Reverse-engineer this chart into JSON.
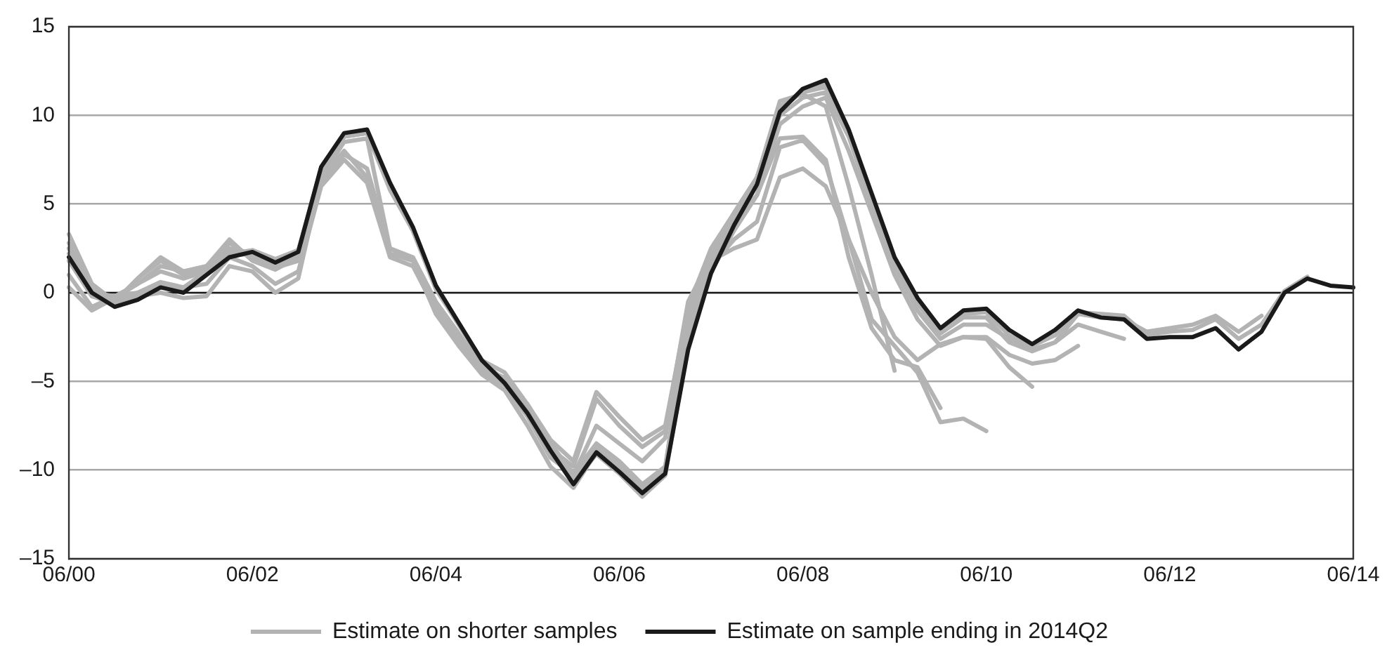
{
  "chart_data": {
    "type": "line",
    "legend": "bottom",
    "grid": "y",
    "marker": "none",
    "line_style": "solid",
    "categories": [
      "06/00",
      null,
      null,
      null,
      null,
      null,
      null,
      null,
      "06/02",
      null,
      null,
      null,
      null,
      null,
      null,
      null,
      "06/04",
      null,
      null,
      null,
      null,
      null,
      null,
      null,
      "06/06",
      null,
      null,
      null,
      null,
      null,
      null,
      null,
      "06/08",
      null,
      null,
      null,
      null,
      null,
      null,
      null,
      "06/10",
      null,
      null,
      null,
      null,
      null,
      null,
      null,
      "06/12",
      null,
      null,
      null,
      null,
      null,
      null,
      null,
      "06/14"
    ],
    "ylim": [
      -15,
      15
    ],
    "yticks": [
      {
        "value": -15,
        "label": "–15"
      },
      {
        "value": -10,
        "label": "–10"
      },
      {
        "value": -5,
        "label": "–5"
      },
      0,
      5,
      10,
      15
    ],
    "ref_lines": [
      {
        "axis": "y",
        "value": 0,
        "color": "#1a1a1a"
      }
    ],
    "series": [
      {
        "name": "Estimate on shorter samples",
        "color": "#b3b3b3",
        "values": [
          3.3,
          0.5,
          -0.5,
          0.8,
          2.0,
          1.2,
          1.5,
          3.0,
          1.8,
          1.3,
          2.0,
          6.2,
          7.8,
          7.0,
          2.5,
          2.0,
          -0.5,
          -2.3,
          -4.2,
          -4.8,
          -6.3,
          -8.3,
          -9.5,
          -5.6,
          -7.0,
          -8.3,
          -7.5,
          -0.8,
          2.5,
          4.5,
          6.5,
          10.8,
          11.2,
          10.5,
          6.0,
          1.0,
          -4.4,
          null,
          null,
          null,
          null,
          null,
          null,
          null,
          null,
          null,
          null,
          null,
          null,
          null,
          null,
          null,
          null,
          null,
          null,
          null,
          null
        ]
      },
      {
        "color": "#b3b3b3",
        "values": [
          2.8,
          0.0,
          -0.3,
          0.5,
          1.5,
          1.2,
          1.5,
          2.5,
          2.2,
          1.5,
          2.0,
          6.5,
          8.0,
          6.5,
          2.2,
          1.8,
          -0.8,
          -2.5,
          -4.3,
          -5.0,
          -6.6,
          -8.8,
          -9.8,
          -6.0,
          -7.5,
          -8.7,
          -7.8,
          -0.5,
          2.0,
          4.0,
          5.5,
          8.7,
          8.8,
          7.5,
          2.0,
          -2.0,
          -3.8,
          -4.2,
          -6.5,
          null,
          null,
          null,
          null,
          null,
          null,
          null,
          null,
          null,
          null,
          null,
          null,
          null,
          null,
          null,
          null,
          null,
          null
        ]
      },
      {
        "color": "#b3b3b3",
        "values": [
          1.0,
          -0.8,
          -0.2,
          0.0,
          0.5,
          0.3,
          0.5,
          2.0,
          1.5,
          0.5,
          1.2,
          6.0,
          7.5,
          6.2,
          2.0,
          1.5,
          -1.0,
          -2.8,
          -4.5,
          -5.2,
          -7.0,
          -9.3,
          -10.3,
          -7.5,
          -8.5,
          -9.5,
          -8.2,
          -0.8,
          1.5,
          3.0,
          4.0,
          8.2,
          8.6,
          7.2,
          3.0,
          -1.5,
          -3.0,
          -4.5,
          -7.3,
          -7.1,
          -7.8,
          null,
          null,
          null,
          null,
          null,
          null,
          null,
          null,
          null,
          null,
          null,
          null,
          null,
          null,
          null,
          null
        ]
      },
      {
        "color": "#b3b3b3",
        "values": [
          0.3,
          -1.0,
          -0.3,
          -0.2,
          0.0,
          -0.3,
          -0.2,
          1.5,
          1.2,
          0.0,
          0.8,
          6.5,
          8.5,
          8.7,
          2.5,
          1.8,
          -1.2,
          -3.0,
          -4.6,
          -5.5,
          -7.5,
          -9.8,
          -11.0,
          -9.0,
          -10.0,
          -11.2,
          -10.0,
          -1.5,
          1.8,
          2.5,
          3.0,
          6.5,
          7.0,
          6.0,
          3.0,
          0.0,
          -2.5,
          -3.8,
          -2.9,
          -2.5,
          -2.6,
          -4.2,
          -5.3,
          null,
          null,
          null,
          null,
          null,
          null,
          null,
          null,
          null,
          null,
          null,
          null,
          null,
          null
        ]
      },
      {
        "color": "#b3b3b3",
        "values": [
          2.5,
          0.3,
          -0.5,
          0.8,
          1.8,
          1.0,
          1.3,
          2.8,
          2.0,
          1.4,
          1.8,
          6.8,
          8.8,
          9.0,
          5.8,
          3.5,
          0.2,
          -1.8,
          -3.8,
          -4.5,
          -6.3,
          -8.5,
          -10.2,
          -8.5,
          -9.5,
          -10.8,
          -9.8,
          -2.0,
          1.2,
          3.5,
          5.5,
          9.5,
          10.5,
          11.0,
          8.0,
          4.5,
          1.0,
          -1.5,
          -3.0,
          -2.5,
          -2.5,
          -3.5,
          -4.0,
          -3.8,
          -3.0,
          null,
          null,
          null,
          null,
          null,
          null,
          null,
          null,
          null,
          null,
          null,
          null
        ]
      },
      {
        "color": "#b3b3b3",
        "values": [
          2.5,
          0.0,
          -0.2,
          0.5,
          1.2,
          0.8,
          1.2,
          2.3,
          2.2,
          1.8,
          2.3,
          7.0,
          8.8,
          9.0,
          6.0,
          3.5,
          0.3,
          -1.8,
          -3.9,
          -5.0,
          -6.8,
          -8.7,
          -10.5,
          -8.8,
          -9.8,
          -11.0,
          -9.9,
          -1.0,
          2.0,
          4.5,
          6.5,
          10.0,
          11.0,
          11.3,
          8.8,
          5.0,
          1.5,
          -1.0,
          -2.6,
          -1.8,
          -1.8,
          -2.6,
          -3.2,
          -2.8,
          -1.8,
          -2.2,
          -2.6,
          null,
          null,
          null,
          null,
          null,
          null,
          null,
          null,
          null,
          null
        ]
      },
      {
        "color": "#b3b3b3",
        "values": [
          2.2,
          0.2,
          -0.5,
          0.0,
          0.6,
          0.3,
          1.2,
          2.2,
          2.4,
          1.9,
          2.4,
          7.0,
          8.9,
          9.1,
          6.0,
          3.5,
          0.3,
          -1.8,
          -3.9,
          -5.0,
          -6.6,
          -8.6,
          -10.5,
          -8.8,
          -9.8,
          -11.0,
          -10.0,
          -2.5,
          1.5,
          4.0,
          6.5,
          10.5,
          11.3,
          11.6,
          9.0,
          5.2,
          1.8,
          -0.6,
          -2.3,
          -1.4,
          -1.4,
          -2.8,
          -3.3,
          -2.8,
          -1.2,
          -1.4,
          -1.5,
          -2.2,
          -2.0,
          -1.8,
          -1.3,
          -2.2,
          -1.3,
          null,
          null,
          null,
          null
        ]
      },
      {
        "color": "#b3b3b3",
        "values": [
          1.8,
          -0.2,
          -0.6,
          -0.2,
          0.4,
          0.1,
          1.1,
          2.1,
          2.2,
          1.6,
          2.2,
          7.0,
          8.8,
          9.0,
          6.1,
          3.6,
          0.4,
          -1.7,
          -3.8,
          -5.0,
          -6.7,
          -8.8,
          -10.7,
          -9.1,
          -10.2,
          -11.5,
          -10.3,
          -3.0,
          1.2,
          3.9,
          6.3,
          10.3,
          11.4,
          11.8,
          9.1,
          5.4,
          1.9,
          -0.4,
          -2.1,
          -1.2,
          -1.1,
          -2.4,
          -3.0,
          -2.4,
          -1.1,
          -1.2,
          -1.3,
          -2.4,
          -2.2,
          -2.1,
          -1.5,
          -2.6,
          -1.8,
          0.1,
          0.9,
          null,
          null
        ]
      },
      {
        "name": "Estimate on sample ending in 2014Q2",
        "color": "#1a1a1a",
        "values": [
          2.0,
          0.0,
          -0.8,
          -0.4,
          0.3,
          0.0,
          1.0,
          2.0,
          2.3,
          1.7,
          2.3,
          7.1,
          9.0,
          9.2,
          6.2,
          3.7,
          0.4,
          -1.7,
          -3.8,
          -5.1,
          -6.8,
          -8.9,
          -10.8,
          -9.0,
          -10.1,
          -11.3,
          -10.2,
          -3.2,
          1.1,
          3.8,
          6.1,
          10.2,
          11.5,
          12.0,
          9.2,
          5.6,
          2.0,
          -0.3,
          -2.0,
          -1.0,
          -0.9,
          -2.1,
          -2.9,
          -2.1,
          -1.0,
          -1.4,
          -1.5,
          -2.6,
          -2.5,
          -2.5,
          -2.0,
          -3.2,
          -2.2,
          0.0,
          0.8,
          0.4,
          0.3
        ]
      }
    ]
  }
}
